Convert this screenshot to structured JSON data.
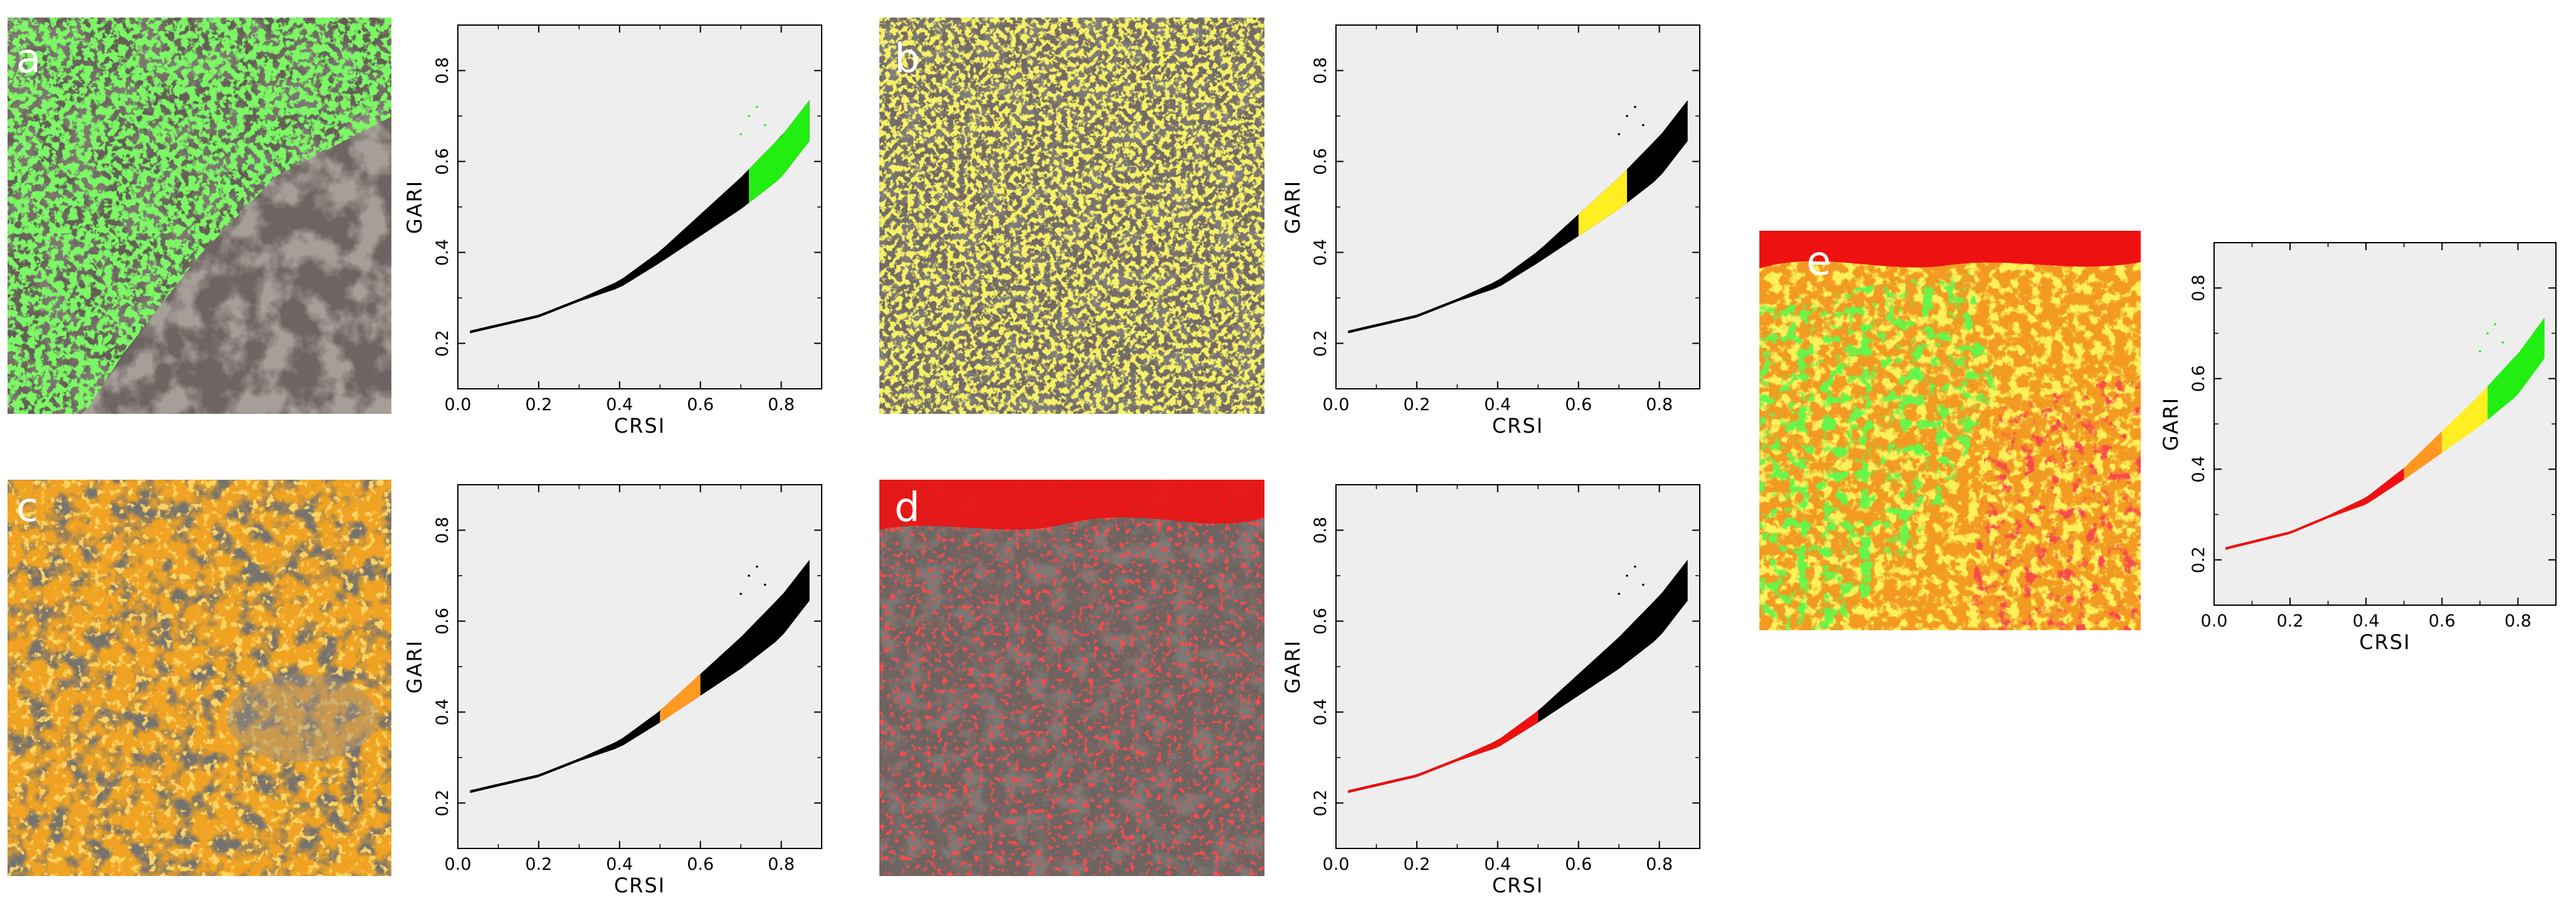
{
  "figure": {
    "panels": [
      {
        "letter": "a",
        "overlay_color": "#33ee22"
      },
      {
        "letter": "b",
        "overlay_color": "#ffee22"
      },
      {
        "letter": "c",
        "overlay_color": "#ffaa22"
      },
      {
        "letter": "d",
        "overlay_color": "#ff1111"
      },
      {
        "letter": "e",
        "overlay_color": ""
      }
    ]
  },
  "colors": {
    "green": "#22ee11",
    "yellow": "#ffee22",
    "orange": "#ff9922",
    "red": "#ee1111",
    "base": "#000000",
    "plot_background": "#eeeeee"
  },
  "chart_data": [
    {
      "panel": "a",
      "type": "scatter",
      "xlabel": "CRSI",
      "ylabel": "GARI",
      "xlim": [
        0,
        0.9
      ],
      "ylim": [
        0.1,
        0.9
      ],
      "xticks": [
        "0.0",
        "0.2",
        "0.4",
        "0.6",
        "0.8"
      ],
      "yticks": [
        "0.2",
        "0.4",
        "0.6",
        "0.8"
      ],
      "curve": {
        "x": [
          0.03,
          0.2,
          0.4,
          0.5,
          0.6,
          0.7,
          0.8,
          0.87
        ],
        "y": [
          0.225,
          0.26,
          0.33,
          0.39,
          0.46,
          0.53,
          0.61,
          0.69
        ]
      },
      "highlight": {
        "color": "green",
        "x_range": [
          0.72,
          0.88
        ]
      }
    },
    {
      "panel": "b",
      "type": "scatter",
      "xlabel": "CRSI",
      "ylabel": "GARI",
      "xlim": [
        0,
        0.9
      ],
      "ylim": [
        0.1,
        0.9
      ],
      "xticks": [
        "0.0",
        "0.2",
        "0.4",
        "0.6",
        "0.8"
      ],
      "yticks": [
        "0.2",
        "0.4",
        "0.6",
        "0.8"
      ],
      "curve": {
        "x": [
          0.03,
          0.2,
          0.4,
          0.5,
          0.6,
          0.7,
          0.8,
          0.87
        ],
        "y": [
          0.225,
          0.26,
          0.33,
          0.39,
          0.46,
          0.53,
          0.61,
          0.69
        ]
      },
      "highlight": {
        "color": "yellow",
        "x_range": [
          0.6,
          0.72
        ]
      }
    },
    {
      "panel": "c",
      "type": "scatter",
      "xlabel": "CRSI",
      "ylabel": "GARI",
      "xlim": [
        0,
        0.9
      ],
      "ylim": [
        0.1,
        0.9
      ],
      "xticks": [
        "0.0",
        "0.2",
        "0.4",
        "0.6",
        "0.8"
      ],
      "yticks": [
        "0.2",
        "0.4",
        "0.6",
        "0.8"
      ],
      "curve": {
        "x": [
          0.03,
          0.2,
          0.4,
          0.5,
          0.6,
          0.7,
          0.8,
          0.87
        ],
        "y": [
          0.225,
          0.26,
          0.33,
          0.39,
          0.46,
          0.53,
          0.61,
          0.69
        ]
      },
      "highlight": {
        "color": "orange",
        "x_range": [
          0.5,
          0.6
        ]
      }
    },
    {
      "panel": "d",
      "type": "scatter",
      "xlabel": "CRSI",
      "ylabel": "GARI",
      "xlim": [
        0,
        0.9
      ],
      "ylim": [
        0.1,
        0.9
      ],
      "xticks": [
        "0.0",
        "0.2",
        "0.4",
        "0.6",
        "0.8"
      ],
      "yticks": [
        "0.2",
        "0.4",
        "0.6",
        "0.8"
      ],
      "curve": {
        "x": [
          0.03,
          0.2,
          0.4,
          0.5,
          0.6,
          0.7,
          0.8,
          0.87
        ],
        "y": [
          0.225,
          0.26,
          0.33,
          0.39,
          0.46,
          0.53,
          0.61,
          0.69
        ]
      },
      "highlight": {
        "color": "red",
        "x_range": [
          0.0,
          0.5
        ]
      }
    },
    {
      "panel": "e",
      "type": "scatter",
      "xlabel": "CRSI",
      "ylabel": "GARI",
      "xlim": [
        0,
        0.9
      ],
      "ylim": [
        0.1,
        0.9
      ],
      "xticks": [
        "0.0",
        "0.2",
        "0.4",
        "0.6",
        "0.8"
      ],
      "yticks": [
        "0.2",
        "0.4",
        "0.6",
        "0.8"
      ],
      "curve": {
        "x": [
          0.03,
          0.2,
          0.4,
          0.5,
          0.6,
          0.7,
          0.8,
          0.87
        ],
        "y": [
          0.225,
          0.26,
          0.33,
          0.39,
          0.46,
          0.53,
          0.61,
          0.69
        ]
      },
      "segments": [
        {
          "color": "red",
          "x_range": [
            0.0,
            0.5
          ]
        },
        {
          "color": "orange",
          "x_range": [
            0.5,
            0.6
          ]
        },
        {
          "color": "yellow",
          "x_range": [
            0.6,
            0.72
          ]
        },
        {
          "color": "green",
          "x_range": [
            0.72,
            0.88
          ]
        }
      ]
    }
  ]
}
